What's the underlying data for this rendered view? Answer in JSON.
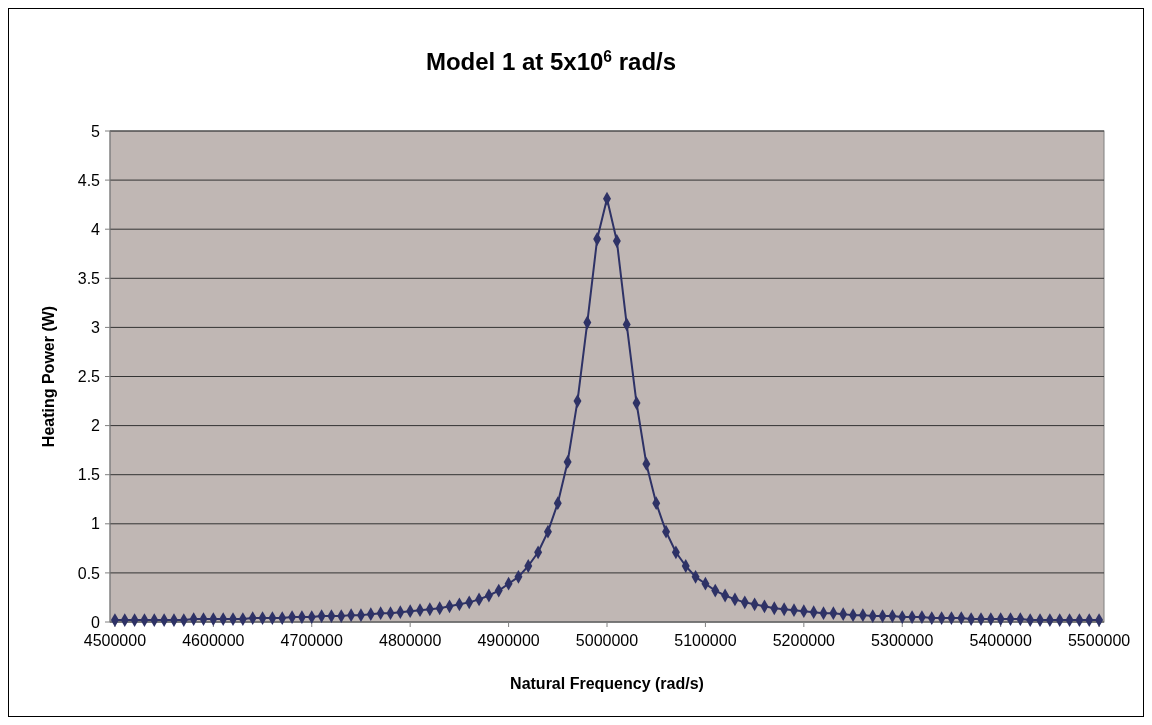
{
  "chart_data": {
    "type": "line",
    "title": "Model 1 at 5x10$^{6}$ rad/s",
    "xlabel": "Natural Frequency (rad/s)",
    "ylabel": "Heating Power (W)",
    "x": [
      4500000,
      4510000,
      4520000,
      4530000,
      4540000,
      4550000,
      4560000,
      4570000,
      4580000,
      4590000,
      4600000,
      4610000,
      4620000,
      4630000,
      4640000,
      4650000,
      4660000,
      4670000,
      4680000,
      4690000,
      4700000,
      4710000,
      4720000,
      4730000,
      4740000,
      4750000,
      4760000,
      4770000,
      4780000,
      4790000,
      4800000,
      4810000,
      4820000,
      4830000,
      4840000,
      4850000,
      4860000,
      4870000,
      4880000,
      4890000,
      4900000,
      4910000,
      4920000,
      4930000,
      4940000,
      4950000,
      4960000,
      4970000,
      4980000,
      4990000,
      5000000,
      5010000,
      5020000,
      5030000,
      5040000,
      5050000,
      5060000,
      5070000,
      5080000,
      5090000,
      5100000,
      5110000,
      5120000,
      5130000,
      5140000,
      5150000,
      5160000,
      5170000,
      5180000,
      5190000,
      5200000,
      5210000,
      5220000,
      5230000,
      5240000,
      5250000,
      5260000,
      5270000,
      5280000,
      5290000,
      5300000,
      5310000,
      5320000,
      5330000,
      5340000,
      5350000,
      5360000,
      5370000,
      5380000,
      5390000,
      5400000,
      5410000,
      5420000,
      5430000,
      5440000,
      5450000,
      5460000,
      5470000,
      5480000,
      5490000,
      5500000
    ],
    "series": [
      {
        "color": "#2e3266",
        "values": [
          0.02,
          0.02,
          0.02,
          0.02,
          0.02,
          0.02,
          0.02,
          0.02,
          0.03,
          0.03,
          0.03,
          0.03,
          0.03,
          0.03,
          0.04,
          0.04,
          0.04,
          0.04,
          0.05,
          0.05,
          0.05,
          0.06,
          0.06,
          0.06,
          0.07,
          0.07,
          0.08,
          0.09,
          0.09,
          0.1,
          0.11,
          0.12,
          0.13,
          0.14,
          0.16,
          0.18,
          0.2,
          0.23,
          0.27,
          0.32,
          0.39,
          0.46,
          0.57,
          0.71,
          0.92,
          1.21,
          1.63,
          2.25,
          3.05,
          3.9,
          4.31,
          3.88,
          3.03,
          2.23,
          1.61,
          1.21,
          0.92,
          0.71,
          0.57,
          0.46,
          0.39,
          0.32,
          0.27,
          0.23,
          0.2,
          0.18,
          0.16,
          0.14,
          0.13,
          0.12,
          0.11,
          0.1,
          0.09,
          0.09,
          0.08,
          0.07,
          0.07,
          0.06,
          0.06,
          0.06,
          0.05,
          0.05,
          0.05,
          0.04,
          0.04,
          0.04,
          0.04,
          0.03,
          0.03,
          0.03,
          0.03,
          0.03,
          0.03,
          0.02,
          0.02,
          0.02,
          0.02,
          0.02,
          0.02,
          0.02,
          0.02
        ]
      }
    ],
    "xlim": [
      4495000,
      5505000
    ],
    "xticks": [
      4500000,
      4600000,
      4700000,
      4800000,
      4900000,
      5000000,
      5100000,
      5200000,
      5300000,
      5400000,
      5500000
    ],
    "ylim": [
      0,
      5
    ],
    "yticks": [
      0,
      0.5,
      1,
      1.5,
      2,
      2.5,
      3,
      3.5,
      4,
      4.5,
      5
    ],
    "grid": "y",
    "marker": "diamond",
    "line_style": "solid"
  }
}
